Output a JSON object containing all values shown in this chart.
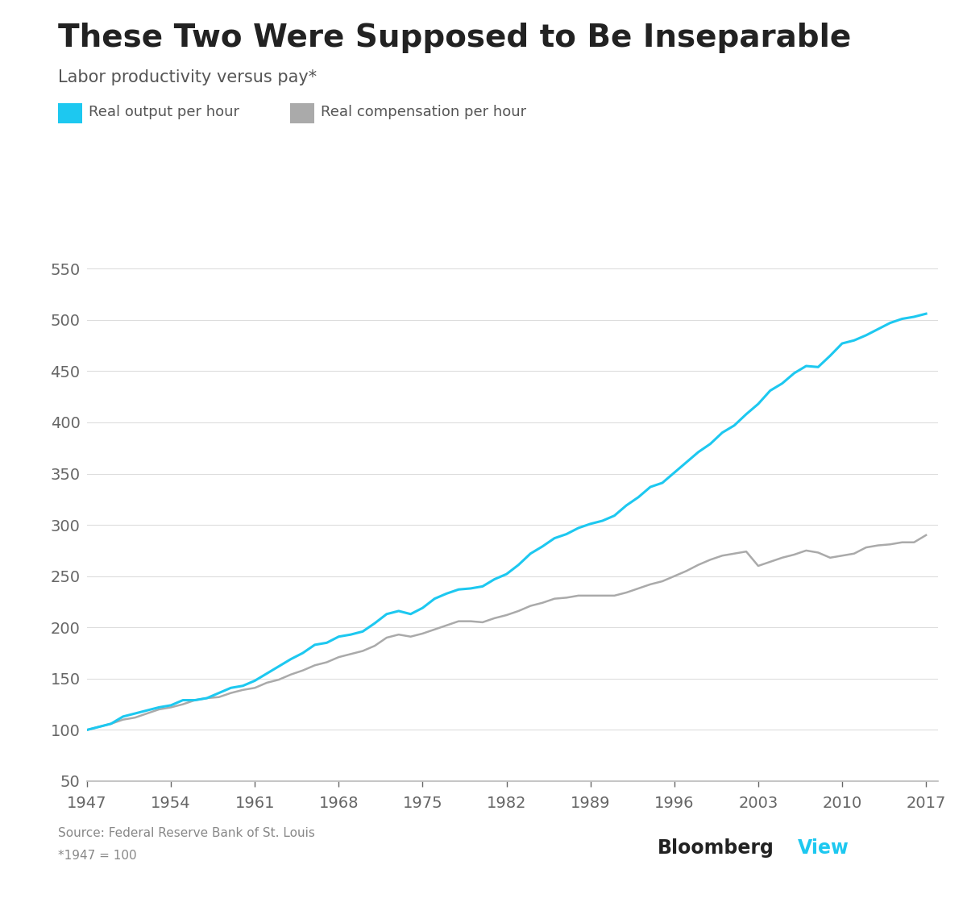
{
  "title": "These Two Were Supposed to Be Inseparable",
  "subtitle": "Labor productivity versus pay*",
  "legend1": "Real output per hour",
  "legend2": "Real compensation per hour",
  "source_text": "Source: Federal Reserve Bank of St. Louis",
  "footnote": "*1947 = 100",
  "bloomberg_text_black": "Bloomberg",
  "bloomberg_text_cyan": "View",
  "color_productivity": "#1DC8F0",
  "color_compensation": "#AAAAAA",
  "background_color": "#FFFFFF",
  "ylim": [
    50,
    570
  ],
  "yticks": [
    50,
    100,
    150,
    200,
    250,
    300,
    350,
    400,
    450,
    500,
    550
  ],
  "xticks": [
    1947,
    1954,
    1961,
    1968,
    1975,
    1982,
    1989,
    1996,
    2003,
    2010,
    2017
  ],
  "title_fontsize": 28,
  "subtitle_fontsize": 15,
  "tick_fontsize": 14,
  "legend_fontsize": 13,
  "productivity_years": [
    1947,
    1948,
    1949,
    1950,
    1951,
    1952,
    1953,
    1954,
    1955,
    1956,
    1957,
    1958,
    1959,
    1960,
    1961,
    1962,
    1963,
    1964,
    1965,
    1966,
    1967,
    1968,
    1969,
    1970,
    1971,
    1972,
    1973,
    1974,
    1975,
    1976,
    1977,
    1978,
    1979,
    1980,
    1981,
    1982,
    1983,
    1984,
    1985,
    1986,
    1987,
    1988,
    1989,
    1990,
    1991,
    1992,
    1993,
    1994,
    1995,
    1996,
    1997,
    1998,
    1999,
    2000,
    2001,
    2002,
    2003,
    2004,
    2005,
    2006,
    2007,
    2008,
    2009,
    2010,
    2011,
    2012,
    2013,
    2014,
    2015,
    2016,
    2017
  ],
  "productivity_values": [
    100,
    103,
    106,
    113,
    116,
    119,
    122,
    124,
    129,
    129,
    131,
    136,
    141,
    143,
    148,
    155,
    162,
    169,
    175,
    183,
    185,
    191,
    193,
    196,
    204,
    213,
    216,
    213,
    219,
    228,
    233,
    237,
    238,
    240,
    247,
    252,
    261,
    272,
    279,
    287,
    291,
    297,
    301,
    304,
    309,
    319,
    327,
    337,
    341,
    351,
    361,
    371,
    379,
    390,
    397,
    408,
    418,
    431,
    438,
    448,
    455,
    454,
    465,
    477,
    480,
    485,
    491,
    497,
    501,
    503,
    506
  ],
  "compensation_years": [
    1947,
    1948,
    1949,
    1950,
    1951,
    1952,
    1953,
    1954,
    1955,
    1956,
    1957,
    1958,
    1959,
    1960,
    1961,
    1962,
    1963,
    1964,
    1965,
    1966,
    1967,
    1968,
    1969,
    1970,
    1971,
    1972,
    1973,
    1974,
    1975,
    1976,
    1977,
    1978,
    1979,
    1980,
    1981,
    1982,
    1983,
    1984,
    1985,
    1986,
    1987,
    1988,
    1989,
    1990,
    1991,
    1992,
    1993,
    1994,
    1995,
    1996,
    1997,
    1998,
    1999,
    2000,
    2001,
    2002,
    2003,
    2004,
    2005,
    2006,
    2007,
    2008,
    2009,
    2010,
    2011,
    2012,
    2013,
    2014,
    2015,
    2016,
    2017
  ],
  "compensation_values": [
    100,
    103,
    106,
    110,
    112,
    116,
    120,
    122,
    125,
    129,
    131,
    132,
    136,
    139,
    141,
    146,
    149,
    154,
    158,
    163,
    166,
    171,
    174,
    177,
    182,
    190,
    193,
    191,
    194,
    198,
    202,
    206,
    206,
    205,
    209,
    212,
    216,
    221,
    224,
    228,
    229,
    231,
    231,
    231,
    231,
    234,
    238,
    242,
    245,
    250,
    255,
    261,
    266,
    270,
    272,
    274,
    260,
    264,
    268,
    271,
    275,
    273,
    268,
    270,
    272,
    278,
    280,
    281,
    283,
    283,
    290
  ]
}
